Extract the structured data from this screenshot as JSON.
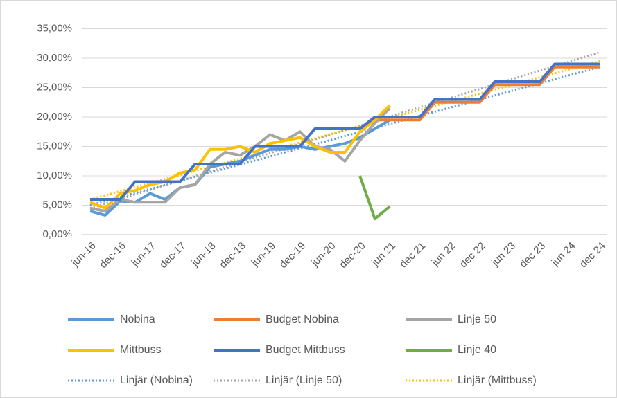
{
  "chart_data": {
    "type": "line",
    "categories": [
      "jun-16",
      null,
      "dec-16",
      null,
      "jun-17",
      null,
      "dec-17",
      null,
      "jun-18",
      null,
      "dec-18",
      null,
      "jun-19",
      null,
      "dec-19",
      null,
      "jun-20",
      null,
      "dec-20",
      null,
      "jun 21",
      null,
      "dec 21",
      null,
      "jun 22",
      null,
      "dec 22",
      null,
      "jun 23",
      null,
      "dec 23",
      null,
      "jun 24",
      null,
      "dec 24"
    ],
    "ylim": [
      0,
      35
    ],
    "yticks": [
      {
        "value": 0,
        "label": "0,00%"
      },
      {
        "value": 5,
        "label": "5,00%"
      },
      {
        "value": 10,
        "label": "10,00%"
      },
      {
        "value": 15,
        "label": "15,00%"
      },
      {
        "value": 20,
        "label": "20,00%"
      },
      {
        "value": 25,
        "label": "25,00%"
      },
      {
        "value": 30,
        "label": "30,00%"
      },
      {
        "value": 35,
        "label": "35,00%"
      }
    ],
    "grid": true,
    "series": [
      {
        "name": "Nobina",
        "color": "#5b9bd5",
        "values": [
          4,
          3.3,
          5.7,
          5.5,
          7,
          6,
          8,
          8.5,
          11.5,
          12,
          12.5,
          13.5,
          14.5,
          14.5,
          15,
          14.5,
          15,
          15.5,
          16.5,
          18,
          19.5,
          null,
          null,
          null,
          null,
          null,
          null,
          null,
          null,
          null,
          null,
          null,
          null,
          null,
          null
        ]
      },
      {
        "name": "Budget Nobina",
        "color": "#ed7d31",
        "values": [
          null,
          null,
          null,
          null,
          null,
          null,
          null,
          null,
          null,
          null,
          null,
          null,
          null,
          null,
          null,
          null,
          null,
          null,
          null,
          19.5,
          19.5,
          19.5,
          19.5,
          22.5,
          22.5,
          22.5,
          22.5,
          25.5,
          25.5,
          25.5,
          25.5,
          28.5,
          28.5,
          28.5,
          28.5
        ]
      },
      {
        "name": "Linje 50",
        "color": "#a5a5a5",
        "values": [
          4.5,
          4,
          6,
          5.5,
          5.5,
          5.5,
          8,
          8.5,
          12,
          14,
          13.5,
          15,
          17,
          16,
          17.5,
          15,
          14.5,
          12.5,
          16,
          19,
          21.5,
          null,
          null,
          null,
          null,
          null,
          null,
          null,
          null,
          null,
          null,
          null,
          null,
          null,
          null
        ]
      },
      {
        "name": "Mittbuss",
        "color": "#ffc000",
        "values": [
          5.5,
          4.5,
          7,
          7.5,
          8.5,
          9,
          10.5,
          11,
          14.5,
          14.5,
          15,
          14,
          15.5,
          16,
          16.5,
          15,
          14,
          14,
          17.5,
          19.5,
          22,
          null,
          null,
          null,
          null,
          null,
          null,
          null,
          null,
          null,
          null,
          null,
          null,
          null,
          null
        ]
      },
      {
        "name": "Budget Mittbuss",
        "color": "#4472c4",
        "values": [
          6,
          6,
          6,
          9,
          9,
          9,
          9,
          12,
          12,
          12,
          12,
          15,
          15,
          15,
          15,
          18,
          18,
          18,
          18,
          20,
          20,
          20,
          20,
          23,
          23,
          23,
          23,
          26,
          26,
          26,
          26,
          29,
          29,
          29,
          29
        ]
      },
      {
        "name": "Linje 40",
        "color": "#70ad47",
        "values": [
          null,
          null,
          null,
          null,
          null,
          null,
          null,
          null,
          null,
          null,
          null,
          null,
          null,
          null,
          null,
          null,
          null,
          null,
          10,
          2.7,
          4.8,
          null,
          null,
          null,
          null,
          null,
          null,
          null,
          null,
          null,
          null,
          null,
          null,
          null,
          null
        ]
      }
    ],
    "trendlines": [
      {
        "name": "Linjär (Nobina)",
        "color": "#5b9bd5",
        "values": [
          5,
          28.5
        ]
      },
      {
        "name": "Linjär (Linje 50)",
        "color": "#a5a5a5",
        "values": [
          4.5,
          31
        ]
      },
      {
        "name": "Linjär (Mittbuss)",
        "color": "#ffc000",
        "values": [
          6,
          29.5
        ]
      }
    ]
  }
}
